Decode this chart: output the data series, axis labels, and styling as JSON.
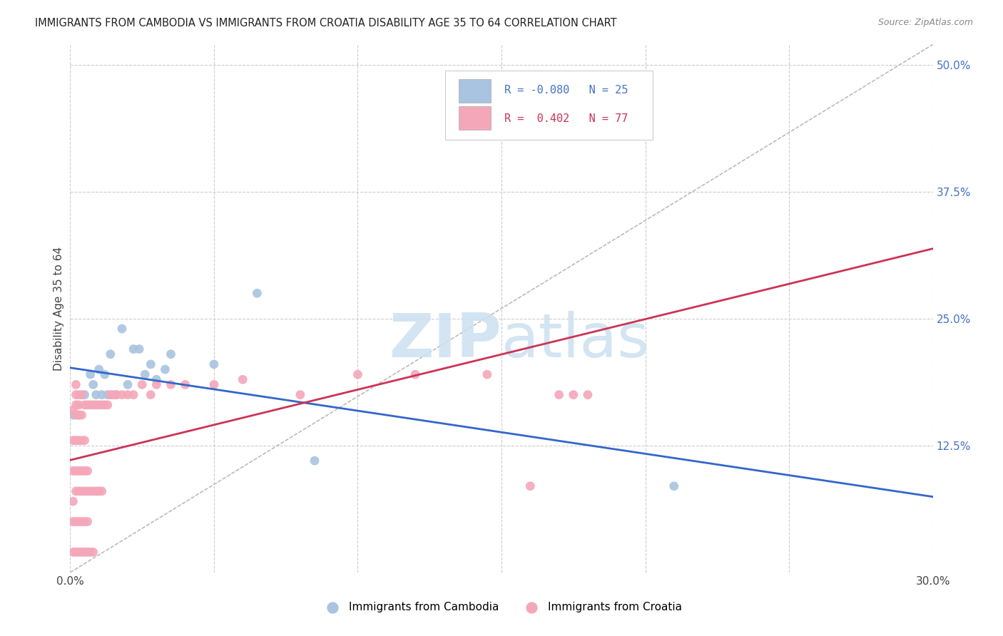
{
  "title": "IMMIGRANTS FROM CAMBODIA VS IMMIGRANTS FROM CROATIA DISABILITY AGE 35 TO 64 CORRELATION CHART",
  "source": "Source: ZipAtlas.com",
  "ylabel": "Disability Age 35 to 64",
  "xlim": [
    0.0,
    0.3
  ],
  "ylim": [
    0.0,
    0.52
  ],
  "xticks": [
    0.0,
    0.05,
    0.1,
    0.15,
    0.2,
    0.25,
    0.3
  ],
  "xtick_labels": [
    "0.0%",
    "",
    "",
    "",
    "",
    "",
    "30.0%"
  ],
  "ytick_labels_right": [
    "50.0%",
    "37.5%",
    "25.0%",
    "12.5%"
  ],
  "ytick_vals_right": [
    0.5,
    0.375,
    0.25,
    0.125
  ],
  "r_cambodia": -0.08,
  "n_cambodia": 25,
  "r_croatia": 0.402,
  "n_croatia": 77,
  "color_cambodia": "#a8c4e0",
  "color_croatia": "#f4a7b9",
  "line_color_cambodia": "#3366cc",
  "line_color_croatia": "#cc3355",
  "diagonal_color": "#bbbbbb",
  "grid_color": "#cccccc",
  "background_color": "#ffffff",
  "cambodia_x": [
    0.001,
    0.003,
    0.005,
    0.007,
    0.008,
    0.009,
    0.01,
    0.011,
    0.012,
    0.013,
    0.014,
    0.016,
    0.018,
    0.02,
    0.022,
    0.024,
    0.026,
    0.028,
    0.03,
    0.033,
    0.035,
    0.05,
    0.065,
    0.085,
    0.21
  ],
  "cambodia_y": [
    0.155,
    0.155,
    0.175,
    0.195,
    0.185,
    0.175,
    0.2,
    0.175,
    0.195,
    0.175,
    0.215,
    0.175,
    0.24,
    0.185,
    0.22,
    0.22,
    0.195,
    0.205,
    0.19,
    0.2,
    0.215,
    0.205,
    0.275,
    0.11,
    0.085
  ],
  "croatia_x": [
    0.001,
    0.001,
    0.001,
    0.001,
    0.001,
    0.001,
    0.002,
    0.002,
    0.002,
    0.002,
    0.002,
    0.002,
    0.002,
    0.002,
    0.002,
    0.003,
    0.003,
    0.003,
    0.003,
    0.003,
    0.003,
    0.003,
    0.003,
    0.004,
    0.004,
    0.004,
    0.004,
    0.004,
    0.004,
    0.004,
    0.005,
    0.005,
    0.005,
    0.005,
    0.005,
    0.005,
    0.006,
    0.006,
    0.006,
    0.006,
    0.006,
    0.007,
    0.007,
    0.007,
    0.008,
    0.008,
    0.008,
    0.009,
    0.009,
    0.01,
    0.01,
    0.011,
    0.011,
    0.012,
    0.013,
    0.014,
    0.015,
    0.016,
    0.018,
    0.02,
    0.022,
    0.025,
    0.028,
    0.03,
    0.035,
    0.04,
    0.05,
    0.06,
    0.08,
    0.1,
    0.12,
    0.145,
    0.16,
    0.17,
    0.175,
    0.18,
    0.185
  ],
  "croatia_y": [
    0.02,
    0.05,
    0.07,
    0.1,
    0.13,
    0.16,
    0.02,
    0.05,
    0.08,
    0.1,
    0.13,
    0.155,
    0.165,
    0.175,
    0.185,
    0.02,
    0.05,
    0.08,
    0.1,
    0.13,
    0.155,
    0.165,
    0.175,
    0.02,
    0.05,
    0.08,
    0.1,
    0.13,
    0.155,
    0.175,
    0.02,
    0.05,
    0.08,
    0.1,
    0.13,
    0.165,
    0.02,
    0.05,
    0.08,
    0.1,
    0.165,
    0.02,
    0.08,
    0.165,
    0.02,
    0.08,
    0.165,
    0.08,
    0.165,
    0.08,
    0.165,
    0.08,
    0.165,
    0.165,
    0.165,
    0.175,
    0.175,
    0.175,
    0.175,
    0.175,
    0.175,
    0.185,
    0.175,
    0.185,
    0.185,
    0.185,
    0.185,
    0.19,
    0.175,
    0.195,
    0.195,
    0.195,
    0.085,
    0.175,
    0.175,
    0.175,
    0.435
  ]
}
